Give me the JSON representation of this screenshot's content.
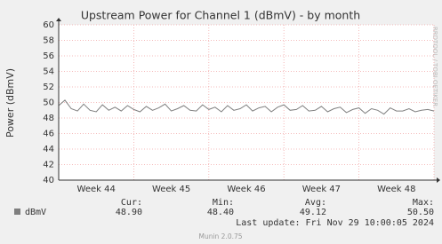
{
  "chart_data": {
    "type": "line",
    "title": "Upstream Power for Channel 1 (dBmV) - by month",
    "y_label": "Power (dBmV)",
    "categories": [
      null,
      null,
      null,
      null,
      null,
      null,
      "Week 44",
      null,
      null,
      null,
      null,
      null,
      null,
      null,
      null,
      null,
      null,
      null,
      "Week 45",
      null,
      null,
      null,
      null,
      null,
      null,
      null,
      null,
      null,
      null,
      null,
      "Week 46",
      null,
      null,
      null,
      null,
      null,
      null,
      null,
      null,
      null,
      null,
      null,
      "Week 47",
      null,
      null,
      null,
      null,
      null,
      null,
      null,
      null,
      null,
      null,
      null,
      "Week 48",
      null,
      null,
      null,
      null,
      null,
      null
    ],
    "series": [
      {
        "name": "dBmV",
        "color": "#7f7f7f",
        "values": [
          49.6,
          50.3,
          49.2,
          48.9,
          49.8,
          49.0,
          48.8,
          49.7,
          49.0,
          49.4,
          48.9,
          49.6,
          49.1,
          48.8,
          49.5,
          49.0,
          49.3,
          49.8,
          48.9,
          49.2,
          49.6,
          49.0,
          48.9,
          49.7,
          49.1,
          49.4,
          48.8,
          49.6,
          49.0,
          49.2,
          49.7,
          48.9,
          49.3,
          49.5,
          48.8,
          49.4,
          49.7,
          49.0,
          49.1,
          49.6,
          48.9,
          49.0,
          49.5,
          48.8,
          49.2,
          49.4,
          48.7,
          49.1,
          49.3,
          48.6,
          49.2,
          49.0,
          48.5,
          49.3,
          48.9,
          48.9,
          49.2,
          48.8,
          49.0,
          49.1,
          48.9
        ]
      }
    ],
    "ylim": [
      40,
      60
    ],
    "yticks": [
      40,
      42,
      44,
      46,
      48,
      50,
      52,
      54,
      56,
      58,
      60
    ],
    "grid": true,
    "summary": {
      "labels": [
        "Cur:",
        "Min:",
        "Avg:",
        "Max:"
      ],
      "values": [
        "48.90",
        "48.40",
        "49.12",
        "50.50"
      ]
    },
    "last_update": "Last update: Fri Nov 29 10:00:05 2024",
    "watermark": "RRDTOOL / TOBI OETIKER",
    "version": "Munin 2.0.75"
  }
}
